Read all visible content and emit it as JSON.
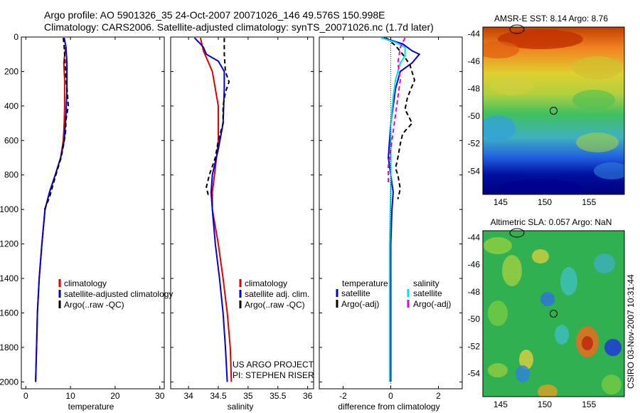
{
  "header": {
    "line1": "Argo profile: AO 5901326_35 24-Oct-2007 20071026_146 49.576S 150.998E",
    "line2": "Climatology: CARS2006. Satellite-adjusted climatology: synTS_20071026.nc (1.7d later)"
  },
  "colors": {
    "climatology": "#e00000",
    "satellite": "#0000dd",
    "argo": "#000000",
    "satellite_salinity": "#00e0e0",
    "argo_salinity_adj": "#e000e0"
  },
  "chart_data": [
    {
      "type": "line",
      "id": "temperature",
      "xlabel": "temperature",
      "xlim": [
        -1,
        31
      ],
      "ylim": [
        0,
        2040
      ],
      "yreversed": true,
      "xticks": [
        0,
        10,
        20,
        30
      ],
      "xtick_labels": [
        "0",
        "10",
        "20",
        "30"
      ],
      "yticks": [
        0,
        200,
        400,
        600,
        800,
        1000,
        1200,
        1400,
        1600,
        1800,
        2000
      ],
      "ytick_labels": [
        "0",
        "200",
        "400",
        "600",
        "800",
        "1000",
        "1200",
        "1400",
        "1600",
        "1800",
        "2000"
      ],
      "legend": [
        "climatology",
        "satellite-adjusted climatology",
        "Argo(..raw -QC)"
      ],
      "series": [
        {
          "name": "climatology",
          "color": "#e00000",
          "dash": false,
          "points": [
            [
              8.9,
              60
            ],
            [
              8.5,
              150
            ],
            [
              8.7,
              250
            ],
            [
              8.7,
              400
            ],
            [
              8.6,
              500
            ],
            [
              8.4,
              600
            ],
            [
              7.8,
              700
            ],
            [
              6.6,
              800
            ],
            [
              5.3,
              900
            ],
            [
              4.3,
              1000
            ],
            [
              3.6,
              1200
            ],
            [
              3.0,
              1400
            ],
            [
              2.6,
              1600
            ],
            [
              2.4,
              1800
            ],
            [
              2.2,
              2000
            ]
          ]
        },
        {
          "name": "satellite-adjusted climatology",
          "color": "#0000dd",
          "dash": false,
          "points": [
            [
              8.6,
              5
            ],
            [
              9.0,
              60
            ],
            [
              9.2,
              150
            ],
            [
              9.2,
              300
            ],
            [
              9.0,
              450
            ],
            [
              8.6,
              600
            ],
            [
              7.8,
              700
            ],
            [
              6.6,
              800
            ],
            [
              5.3,
              900
            ],
            [
              4.3,
              1000
            ],
            [
              3.6,
              1200
            ],
            [
              3.0,
              1400
            ],
            [
              2.6,
              1600
            ],
            [
              2.4,
              1800
            ],
            [
              2.2,
              2000
            ]
          ]
        },
        {
          "name": "Argo(..raw -QC)",
          "color": "#000000",
          "dash": true,
          "points": [
            [
              8.4,
              5
            ],
            [
              8.6,
              60
            ],
            [
              8.8,
              150
            ],
            [
              9.0,
              250
            ],
            [
              9.3,
              320
            ],
            [
              9.5,
              400
            ],
            [
              9.0,
              480
            ],
            [
              8.9,
              550
            ],
            [
              8.5,
              620
            ],
            [
              7.9,
              700
            ],
            [
              6.5,
              820
            ],
            [
              5.3,
              930
            ],
            [
              4.2,
              1000
            ]
          ]
        }
      ]
    },
    {
      "type": "line",
      "id": "salinity",
      "xlabel": "salinity",
      "xlim": [
        33.7,
        36.1
      ],
      "ylim": [
        0,
        2040
      ],
      "yreversed": true,
      "xticks": [
        34,
        34.5,
        35,
        35.5,
        36
      ],
      "xtick_labels": [
        "34",
        "34.5",
        "35",
        "35.5",
        "36"
      ],
      "legend": [
        "climatology",
        "satellite adj. clim.",
        "Argo(..raw -QC)"
      ],
      "annotation": [
        "US ARGO PROJECT",
        "PI: STEPHEN RISER"
      ],
      "series": [
        {
          "name": "climatology",
          "color": "#e00000",
          "dash": false,
          "points": [
            [
              34.2,
              5
            ],
            [
              34.25,
              80
            ],
            [
              34.4,
              200
            ],
            [
              34.5,
              400
            ],
            [
              34.5,
              600
            ],
            [
              34.45,
              760
            ],
            [
              34.4,
              900
            ],
            [
              34.4,
              1000
            ],
            [
              34.5,
              1200
            ],
            [
              34.58,
              1400
            ],
            [
              34.65,
              1600
            ],
            [
              34.7,
              1800
            ],
            [
              34.72,
              2000
            ]
          ]
        },
        {
          "name": "satellite adj. clim.",
          "color": "#0000dd",
          "dash": false,
          "points": [
            [
              34.1,
              5
            ],
            [
              34.2,
              40
            ],
            [
              34.25,
              60
            ],
            [
              34.3,
              100
            ],
            [
              34.5,
              140
            ],
            [
              34.6,
              200
            ],
            [
              34.6,
              300
            ],
            [
              34.58,
              500
            ],
            [
              34.5,
              650
            ],
            [
              34.4,
              800
            ],
            [
              34.38,
              900
            ],
            [
              34.4,
              1000
            ],
            [
              34.45,
              1200
            ],
            [
              34.52,
              1400
            ],
            [
              34.58,
              1600
            ],
            [
              34.62,
              1800
            ],
            [
              34.65,
              2000
            ]
          ]
        },
        {
          "name": "Argo(..raw -QC)",
          "color": "#000000",
          "dash": true,
          "points": [
            [
              34.6,
              5
            ],
            [
              34.6,
              100
            ],
            [
              34.62,
              200
            ],
            [
              34.68,
              260
            ],
            [
              34.62,
              320
            ],
            [
              34.58,
              400
            ],
            [
              34.58,
              500
            ],
            [
              34.5,
              600
            ],
            [
              34.45,
              700
            ],
            [
              34.35,
              800
            ],
            [
              34.3,
              870
            ],
            [
              34.34,
              930
            ]
          ]
        }
      ]
    },
    {
      "type": "line",
      "id": "difference",
      "xlabel": "difference from climatology",
      "xlim": [
        -3,
        3
      ],
      "ylim": [
        0,
        2040
      ],
      "yreversed": true,
      "xticks": [
        -2,
        0,
        2
      ],
      "xtick_labels": [
        "-2",
        "0",
        "2"
      ],
      "legend_headers": [
        "temperature",
        "salinity"
      ],
      "legend": [
        "satellite",
        "Argo(-adj)",
        "satellite",
        "Argo(-adj)"
      ],
      "series": [
        {
          "name": "temperature satellite",
          "color": "#0000dd",
          "dash": false,
          "points": [
            [
              -0.3,
              5
            ],
            [
              0.5,
              40
            ],
            [
              0.9,
              80
            ],
            [
              1.2,
              100
            ],
            [
              0.9,
              150
            ],
            [
              0.4,
              200
            ],
            [
              0.2,
              300
            ],
            [
              0.1,
              400
            ],
            [
              0,
              500
            ],
            [
              -0.05,
              600
            ],
            [
              -0.1,
              700
            ],
            [
              0,
              800
            ],
            [
              0.1,
              900
            ],
            [
              0.05,
              1000
            ],
            [
              0,
              1200
            ],
            [
              0,
              1600
            ],
            [
              0,
              2000
            ]
          ]
        },
        {
          "name": "temperature Argo(-adj)",
          "color": "#000000",
          "dash": true,
          "points": [
            [
              -0.2,
              5
            ],
            [
              0.2,
              50
            ],
            [
              0.5,
              100
            ],
            [
              0.8,
              160
            ],
            [
              1.0,
              250
            ],
            [
              0.7,
              350
            ],
            [
              0.6,
              420
            ],
            [
              0.9,
              500
            ],
            [
              0.5,
              560
            ],
            [
              0.4,
              620
            ],
            [
              0.3,
              700
            ],
            [
              0.2,
              760
            ],
            [
              0.3,
              800
            ],
            [
              0.4,
              880
            ],
            [
              0.3,
              940
            ]
          ]
        },
        {
          "name": "salinity satellite",
          "color": "#00e0e0",
          "dash": false,
          "points": [
            [
              -0.4,
              5
            ],
            [
              0.2,
              30
            ],
            [
              0.6,
              60
            ],
            [
              0.6,
              110
            ],
            [
              0.4,
              150
            ],
            [
              0.2,
              250
            ],
            [
              0.1,
              350
            ],
            [
              0,
              500
            ],
            [
              0,
              700
            ],
            [
              0,
              900
            ],
            [
              -0.05,
              1200
            ],
            [
              -0.05,
              1600
            ],
            [
              -0.05,
              2000
            ]
          ]
        },
        {
          "name": "salinity Argo(-adj)",
          "color": "#e000e0",
          "dash": true,
          "points": [
            [
              0.6,
              5
            ],
            [
              0.4,
              60
            ],
            [
              0.3,
              150
            ],
            [
              0.4,
              250
            ],
            [
              0.3,
              350
            ],
            [
              0.2,
              450
            ],
            [
              0.1,
              550
            ],
            [
              0,
              650
            ],
            [
              -0.1,
              750
            ],
            [
              -0.1,
              850
            ]
          ]
        }
      ]
    },
    {
      "type": "heatmap",
      "id": "sst-map",
      "title": "AMSR-E SST: 8.14 Argo: 8.76",
      "xlim": [
        143,
        159
      ],
      "ylim": [
        -55.7,
        -43.5
      ],
      "xticks": [
        145,
        150,
        155
      ],
      "xtick_labels": [
        "145",
        "150",
        "155"
      ],
      "yticks": [
        -44,
        -46,
        -48,
        -50,
        -52,
        -54
      ],
      "ytick_labels": [
        "-44",
        "-46",
        "-48",
        "-50",
        "-52",
        "-54"
      ],
      "marker": [
        151,
        -49.6
      ]
    },
    {
      "type": "heatmap",
      "id": "sla-map",
      "title": "Altimetric SLA: 0.057 Argo: NaN",
      "xlim": [
        143,
        159
      ],
      "ylim": [
        -55.7,
        -43.5
      ],
      "xticks": [
        145,
        150,
        155
      ],
      "xtick_labels": [
        "145",
        "150",
        "155"
      ],
      "yticks": [
        -44,
        -46,
        -48,
        -50,
        -52,
        -54
      ],
      "ytick_labels": [
        "-44",
        "-46",
        "-48",
        "-50",
        "-52",
        "-54"
      ],
      "marker": [
        151,
        -49.6
      ],
      "side_label": "CSIRO 03-Nov-2007 10:31:44"
    }
  ]
}
